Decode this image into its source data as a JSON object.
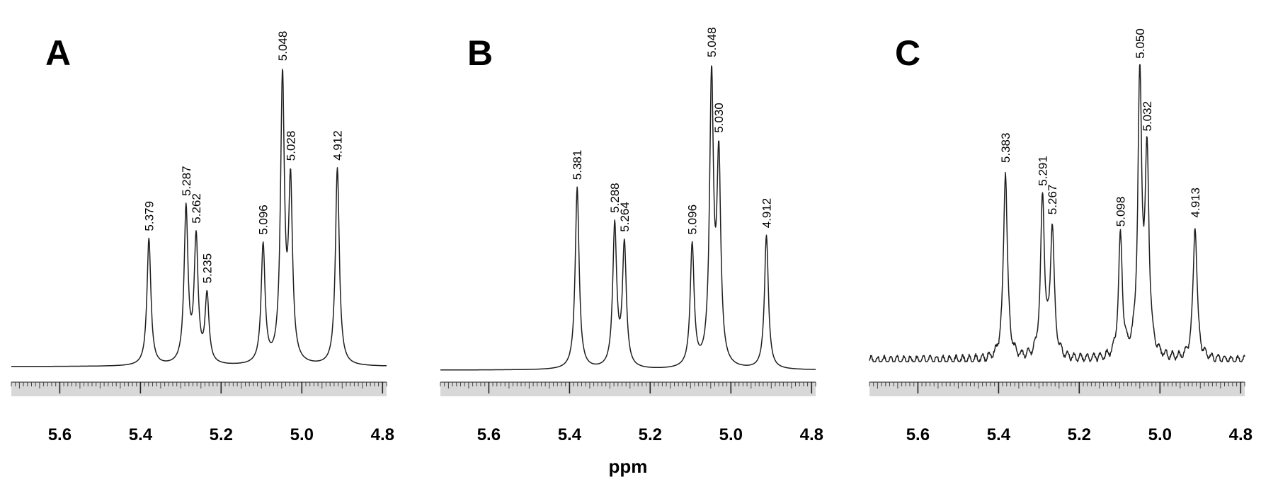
{
  "chart_data": [
    {
      "type": "line",
      "panel": "A",
      "xlabel": "",
      "xlim": [
        5.72,
        4.79
      ],
      "x_ticks": [
        "5.6",
        "5.4",
        "5.2",
        "5.0",
        "4.8"
      ],
      "x_tick_values": [
        5.6,
        5.4,
        5.2,
        5.0,
        4.8
      ],
      "peaks": [
        {
          "ppm": 5.379,
          "label": "5.379",
          "height": 0.45
        },
        {
          "ppm": 5.287,
          "label": "5.287",
          "height": 0.55
        },
        {
          "ppm": 5.262,
          "label": "5.262",
          "height": 0.44
        },
        {
          "ppm": 5.235,
          "label": "5.235",
          "height": 0.24
        },
        {
          "ppm": 5.096,
          "label": "5.096",
          "height": 0.42
        },
        {
          "ppm": 5.048,
          "label": "5.048",
          "height": 1.0
        },
        {
          "ppm": 5.028,
          "label": "5.028",
          "height": 0.62
        },
        {
          "ppm": 4.912,
          "label": "4.912",
          "height": 0.7
        }
      ]
    },
    {
      "type": "line",
      "panel": "B",
      "xlabel": "ppm",
      "xlim": [
        5.72,
        4.79
      ],
      "x_ticks": [
        "5.6",
        "5.4",
        "5.2",
        "5.0",
        "4.8"
      ],
      "x_tick_values": [
        5.6,
        5.4,
        5.2,
        5.0,
        4.8
      ],
      "peaks": [
        {
          "ppm": 5.381,
          "label": "5.381",
          "height": 0.64
        },
        {
          "ppm": 5.288,
          "label": "5.288",
          "height": 0.5
        },
        {
          "ppm": 5.264,
          "label": "5.264",
          "height": 0.43
        },
        {
          "ppm": 5.096,
          "label": "5.096",
          "height": 0.43
        },
        {
          "ppm": 5.048,
          "label": "5.048",
          "height": 1.0
        },
        {
          "ppm": 5.03,
          "label": "5.030",
          "height": 0.71
        },
        {
          "ppm": 4.912,
          "label": "4.912",
          "height": 0.47
        }
      ]
    },
    {
      "type": "line",
      "panel": "C",
      "xlabel": "",
      "xlim": [
        5.72,
        4.79
      ],
      "x_ticks": [
        "5.6",
        "5.4",
        "5.2",
        "5.0",
        "4.8"
      ],
      "x_tick_values": [
        5.6,
        5.4,
        5.2,
        5.0,
        4.8
      ],
      "peaks": [
        {
          "ppm": 5.383,
          "label": "5.383",
          "height": 0.69
        },
        {
          "ppm": 5.291,
          "label": "5.291",
          "height": 0.58
        },
        {
          "ppm": 5.267,
          "label": "5.267",
          "height": 0.47
        },
        {
          "ppm": 5.098,
          "label": "5.098",
          "height": 0.44
        },
        {
          "ppm": 5.05,
          "label": "5.050",
          "height": 1.0
        },
        {
          "ppm": 5.032,
          "label": "5.032",
          "height": 0.71
        },
        {
          "ppm": 4.913,
          "label": "4.913",
          "height": 0.49
        }
      ]
    }
  ]
}
